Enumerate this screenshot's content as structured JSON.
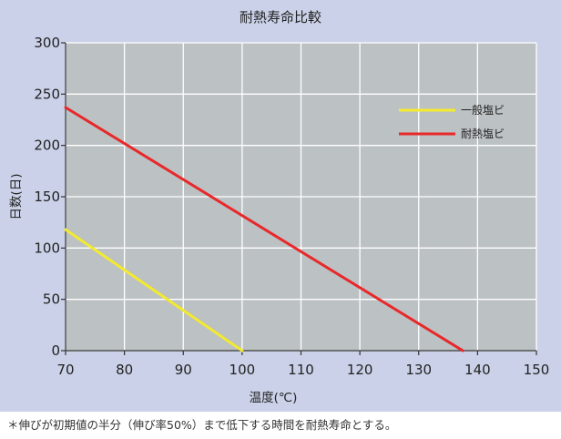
{
  "chart_data": {
    "type": "line",
    "title": "耐熱寿命比較",
    "xlabel": "温度(℃)",
    "ylabel": "日数(日)",
    "xlim": [
      70,
      150
    ],
    "ylim": [
      0,
      300
    ],
    "xticks": [
      70,
      80,
      90,
      100,
      110,
      120,
      130,
      140,
      150
    ],
    "yticks": [
      0,
      50,
      100,
      150,
      200,
      250,
      300
    ],
    "grid": true,
    "legend_position": "top-right",
    "series": [
      {
        "name": "一般塩ビ",
        "color": "#f3ea2e",
        "points": [
          [
            70,
            118
          ],
          [
            100,
            0
          ]
        ]
      },
      {
        "name": "耐熱塩ビ",
        "color": "#e8282a",
        "points": [
          [
            70,
            237
          ],
          [
            137.5,
            0
          ]
        ]
      }
    ]
  },
  "colors": {
    "plot_background": "#bcc1c3",
    "panel_background": "#cbd1e8",
    "grid": "#ffffff"
  },
  "footnote": "＊伸びが初期値の半分（伸び率50%）まで低下する時間を耐熱寿命とする。"
}
